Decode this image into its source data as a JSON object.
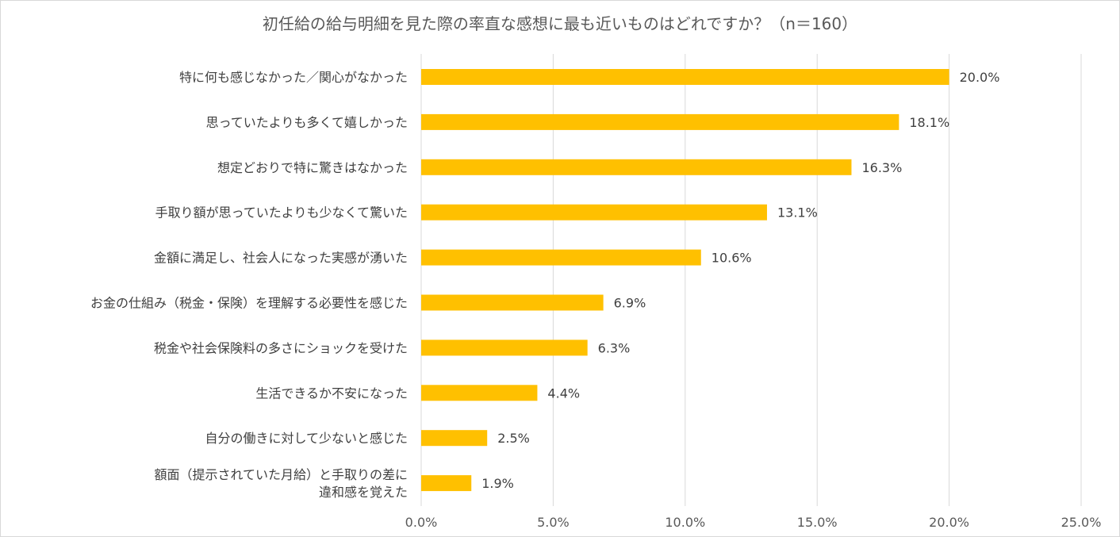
{
  "chart_data": {
    "type": "bar",
    "orientation": "horizontal",
    "title": "初任給の給与明細を見た際の率直な感想に最も近いものはどれですか？（n＝160）",
    "xlabel": "",
    "ylabel": "",
    "xlim": [
      0,
      25
    ],
    "ticks": [
      "0.0%",
      "5.0%",
      "10.0%",
      "15.0%",
      "20.0%",
      "25.0%"
    ],
    "tick_values": [
      0,
      5,
      10,
      15,
      20,
      25
    ],
    "grid": true,
    "legend": "none",
    "bar_color": "#FFC000",
    "categories": [
      [
        "特に何も感じなかった／関心がなかった"
      ],
      [
        "思っていたよりも多くて嬉しかった"
      ],
      [
        "想定どおりで特に驚きはなかった"
      ],
      [
        "手取り額が思っていたよりも少なくて驚いた"
      ],
      [
        "金額に満足し、社会人になった実感が湧いた"
      ],
      [
        "お金の仕組み（税金・保険）を理解する必要性を感じた"
      ],
      [
        "税金や社会保険料の多さにショックを受けた"
      ],
      [
        "生活できるか不安になった"
      ],
      [
        "自分の働きに対して少ないと感じた"
      ],
      [
        "額面（提示されていた月給）と手取りの差に",
        "違和感を覚えた"
      ]
    ],
    "values": [
      20.0,
      18.1,
      16.3,
      13.1,
      10.6,
      6.9,
      6.3,
      4.4,
      2.5,
      1.9
    ],
    "value_labels": [
      "20.0%",
      "18.1%",
      "16.3%",
      "13.1%",
      "10.6%",
      "6.9%",
      "6.3%",
      "4.4%",
      "2.5%",
      "1.9%"
    ]
  }
}
